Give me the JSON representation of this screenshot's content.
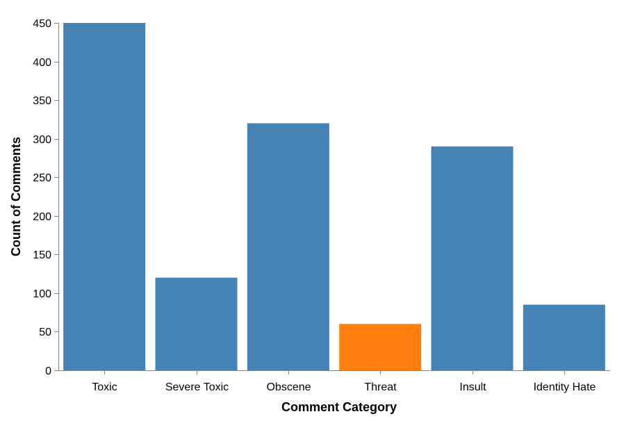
{
  "chart_data": {
    "type": "bar",
    "categories": [
      "Toxic",
      "Severe Toxic",
      "Obscene",
      "Threat",
      "Insult",
      "Identity Hate"
    ],
    "values": [
      450,
      120,
      320,
      60,
      290,
      85
    ],
    "bar_colors": [
      "#4682b4",
      "#4682b4",
      "#4682b4",
      "#ff7f0e",
      "#4682b4",
      "#4682b4"
    ],
    "xlabel": "Comment Category",
    "ylabel": "Count of Comments",
    "ylim": [
      0,
      450
    ],
    "yticks": [
      0,
      50,
      100,
      150,
      200,
      250,
      300,
      350,
      400,
      450
    ],
    "grid": false,
    "axis_color": "#888888"
  }
}
